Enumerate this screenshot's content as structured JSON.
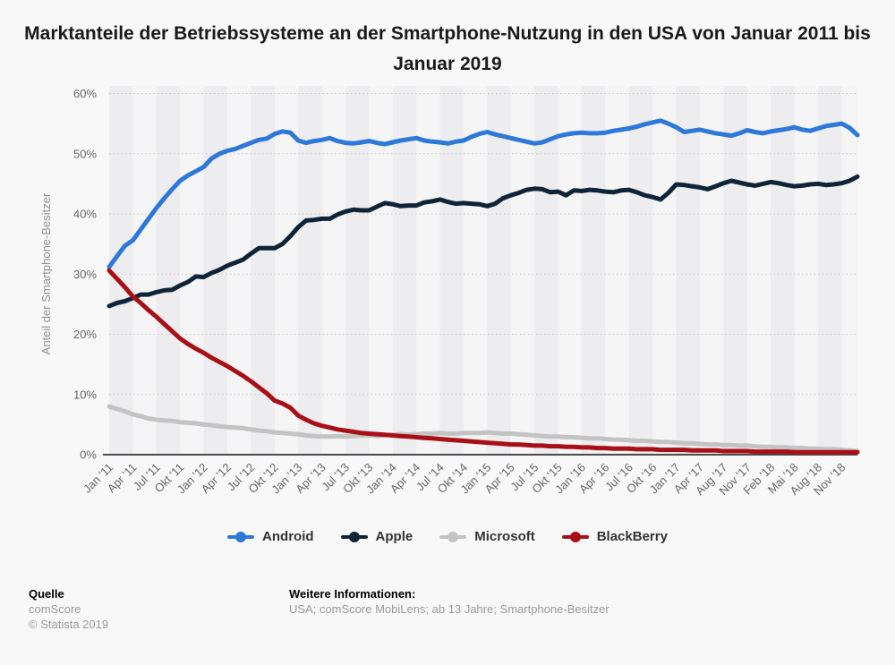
{
  "title": "Marktanteile der Betriebssysteme an der Smartphone-Nutzung in den USA von Januar 2011 bis Januar 2019",
  "footer": {
    "source_label": "Quelle",
    "source_value": "comScore",
    "copyright": "© Statista 2019",
    "info_label": "Weitere Informationen:",
    "info_value": "USA; comScore MobiLens; ab 13 Jahre; Smartphone-Besitzer"
  },
  "chart_data": {
    "type": "line",
    "title": "Marktanteile der Betriebssysteme an der Smartphone-Nutzung in den USA von Januar 2011 bis Januar 2019",
    "y_axis_title": "Anteil der Smartphone-Besitzer",
    "ylim": [
      0,
      60
    ],
    "y_tick_labels": [
      "0%",
      "10%",
      "20%",
      "30%",
      "40%",
      "50%",
      "60%"
    ],
    "grid": "horizontal-dotted",
    "legend_position": "bottom",
    "n_points": 96,
    "points_per_label": 3,
    "x_labels": [
      "Jan '11",
      "Apr '11",
      "Jul '11",
      "Okt '11",
      "Jan '12",
      "Apr '12",
      "Jul '12",
      "Okt '12",
      "Jan '13",
      "Apr '13",
      "Jul '13",
      "Okt '13",
      "Jan '14",
      "Apr '14",
      "Jul '14",
      "Okt '14",
      "Jan '15",
      "Apr '15",
      "Jul '15",
      "Okt '15",
      "Jan '16",
      "Apr '16",
      "Jul '16",
      "Okt '16",
      "Jan '17",
      "Apr '17",
      "Aug '17",
      "Nov '17",
      "Feb '18",
      "Mai '18",
      "Aug '18",
      "Nov '18"
    ],
    "series": [
      {
        "name": "Android",
        "color": "#2d78d8",
        "values": [
          31.2,
          33.0,
          34.7,
          35.6,
          37.4,
          39.2,
          41.0,
          42.6,
          44.1,
          45.5,
          46.4,
          47.1,
          47.8,
          49.2,
          50.0,
          50.5,
          50.8,
          51.3,
          51.8,
          52.3,
          52.5,
          53.3,
          53.7,
          53.5,
          52.2,
          51.8,
          52.1,
          52.3,
          52.6,
          52.1,
          51.8,
          51.7,
          51.9,
          52.1,
          51.8,
          51.6,
          51.9,
          52.2,
          52.4,
          52.6,
          52.2,
          52.0,
          51.9,
          51.7,
          52.0,
          52.2,
          52.8,
          53.3,
          53.6,
          53.2,
          52.9,
          52.6,
          52.3,
          52.0,
          51.7,
          51.9,
          52.4,
          52.9,
          53.2,
          53.4,
          53.5,
          53.4,
          53.4,
          53.5,
          53.8,
          54.0,
          54.2,
          54.5,
          54.9,
          55.2,
          55.5,
          55.0,
          54.4,
          53.6,
          53.8,
          54.0,
          53.7,
          53.4,
          53.2,
          53.0,
          53.4,
          53.9,
          53.6,
          53.4,
          53.7,
          53.9,
          54.1,
          54.4,
          54.0,
          53.8,
          54.2,
          54.6,
          54.8,
          55.0,
          54.3,
          53.1
        ]
      },
      {
        "name": "Apple",
        "color": "#0f2438",
        "values": [
          24.7,
          25.2,
          25.5,
          26.0,
          26.6,
          26.6,
          27.0,
          27.3,
          27.4,
          28.1,
          28.7,
          29.6,
          29.5,
          30.2,
          30.7,
          31.4,
          31.9,
          32.4,
          33.4,
          34.3,
          34.3,
          34.3,
          35.0,
          36.3,
          37.8,
          38.9,
          39.0,
          39.2,
          39.2,
          39.9,
          40.4,
          40.7,
          40.6,
          40.6,
          41.2,
          41.8,
          41.6,
          41.3,
          41.4,
          41.4,
          41.9,
          42.1,
          42.4,
          42.0,
          41.7,
          41.8,
          41.7,
          41.6,
          41.3,
          41.7,
          42.6,
          43.1,
          43.5,
          44.0,
          44.2,
          44.1,
          43.6,
          43.7,
          43.1,
          43.9,
          43.8,
          44.0,
          43.9,
          43.7,
          43.6,
          43.9,
          44.0,
          43.6,
          43.1,
          42.8,
          42.4,
          43.5,
          44.9,
          44.8,
          44.6,
          44.4,
          44.1,
          44.6,
          45.1,
          45.5,
          45.2,
          44.9,
          44.7,
          45.0,
          45.3,
          45.1,
          44.8,
          44.6,
          44.7,
          44.9,
          45.0,
          44.8,
          44.9,
          45.1,
          45.5,
          46.2
        ]
      },
      {
        "name": "Microsoft",
        "color": "#c3c3c3",
        "values": [
          8.0,
          7.6,
          7.2,
          6.7,
          6.4,
          6.0,
          5.8,
          5.7,
          5.6,
          5.4,
          5.3,
          5.2,
          5.0,
          4.9,
          4.7,
          4.6,
          4.5,
          4.4,
          4.2,
          4.0,
          3.9,
          3.7,
          3.6,
          3.5,
          3.4,
          3.2,
          3.1,
          3.0,
          3.0,
          3.1,
          3.0,
          3.1,
          3.2,
          3.2,
          3.1,
          3.2,
          3.3,
          3.4,
          3.3,
          3.4,
          3.5,
          3.5,
          3.6,
          3.5,
          3.5,
          3.6,
          3.6,
          3.6,
          3.7,
          3.6,
          3.5,
          3.5,
          3.4,
          3.3,
          3.2,
          3.1,
          3.0,
          3.0,
          2.9,
          2.9,
          2.8,
          2.7,
          2.7,
          2.6,
          2.5,
          2.5,
          2.4,
          2.3,
          2.3,
          2.2,
          2.1,
          2.1,
          2.0,
          1.9,
          1.9,
          1.8,
          1.7,
          1.7,
          1.6,
          1.6,
          1.5,
          1.5,
          1.4,
          1.3,
          1.3,
          1.2,
          1.2,
          1.1,
          1.1,
          1.0,
          1.0,
          0.9,
          0.9,
          0.8,
          0.7,
          0.6
        ]
      },
      {
        "name": "BlackBerry",
        "color": "#a71016",
        "values": [
          30.6,
          29.2,
          27.8,
          26.3,
          25.2,
          24.0,
          22.9,
          21.7,
          20.5,
          19.3,
          18.4,
          17.6,
          16.9,
          16.1,
          15.4,
          14.7,
          13.9,
          13.1,
          12.2,
          11.2,
          10.2,
          9.0,
          8.5,
          7.8,
          6.5,
          5.8,
          5.2,
          4.8,
          4.5,
          4.2,
          4.0,
          3.8,
          3.6,
          3.5,
          3.4,
          3.3,
          3.2,
          3.1,
          3.0,
          2.9,
          2.8,
          2.7,
          2.6,
          2.5,
          2.4,
          2.3,
          2.2,
          2.1,
          2.0,
          1.9,
          1.8,
          1.7,
          1.7,
          1.6,
          1.5,
          1.5,
          1.4,
          1.4,
          1.3,
          1.3,
          1.2,
          1.2,
          1.1,
          1.1,
          1.0,
          1.0,
          1.0,
          0.9,
          0.9,
          0.9,
          0.8,
          0.8,
          0.8,
          0.8,
          0.7,
          0.7,
          0.7,
          0.7,
          0.6,
          0.6,
          0.6,
          0.6,
          0.5,
          0.5,
          0.5,
          0.5,
          0.5,
          0.4,
          0.4,
          0.4,
          0.4,
          0.4,
          0.4,
          0.4,
          0.4,
          0.4
        ]
      }
    ],
    "colors": {
      "page_background": "#f8f8f8",
      "plot_background": "#f5f5f6",
      "alt_band": "#ededef",
      "gridline": "#c9c9c9",
      "axis_line": "#4c4c4c",
      "tick_label": "#666666",
      "axis_title": "#8f8f8f"
    }
  }
}
